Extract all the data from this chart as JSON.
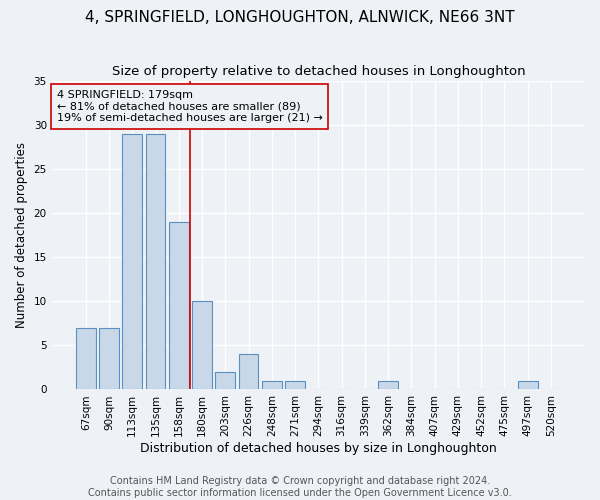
{
  "title": "4, SPRINGFIELD, LONGHOUGHTON, ALNWICK, NE66 3NT",
  "subtitle": "Size of property relative to detached houses in Longhoughton",
  "xlabel": "Distribution of detached houses by size in Longhoughton",
  "ylabel": "Number of detached properties",
  "footer_line1": "Contains HM Land Registry data © Crown copyright and database right 2024.",
  "footer_line2": "Contains public sector information licensed under the Open Government Licence v3.0.",
  "annotation_line1": "4 SPRINGFIELD: 179sqm",
  "annotation_line2": "← 81% of detached houses are smaller (89)",
  "annotation_line3": "19% of semi-detached houses are larger (21) →",
  "categories": [
    "67sqm",
    "90sqm",
    "113sqm",
    "135sqm",
    "158sqm",
    "180sqm",
    "203sqm",
    "226sqm",
    "248sqm",
    "271sqm",
    "294sqm",
    "316sqm",
    "339sqm",
    "362sqm",
    "384sqm",
    "407sqm",
    "429sqm",
    "452sqm",
    "475sqm",
    "497sqm",
    "520sqm"
  ],
  "values": [
    7,
    7,
    29,
    29,
    19,
    10,
    2,
    4,
    1,
    1,
    0,
    0,
    0,
    1,
    0,
    0,
    0,
    0,
    0,
    1,
    0
  ],
  "bar_color": "#c8d8e8",
  "bar_edge_color": "#5a8fc0",
  "ref_line_color": "#cc0000",
  "ref_line_index": 5,
  "ylim": [
    0,
    35
  ],
  "yticks": [
    0,
    5,
    10,
    15,
    20,
    25,
    30,
    35
  ],
  "background_color": "#eef2f7",
  "title_fontsize": 11,
  "subtitle_fontsize": 9.5,
  "xlabel_fontsize": 9,
  "ylabel_fontsize": 8.5,
  "tick_fontsize": 7.5,
  "annotation_fontsize": 8,
  "footer_fontsize": 7
}
